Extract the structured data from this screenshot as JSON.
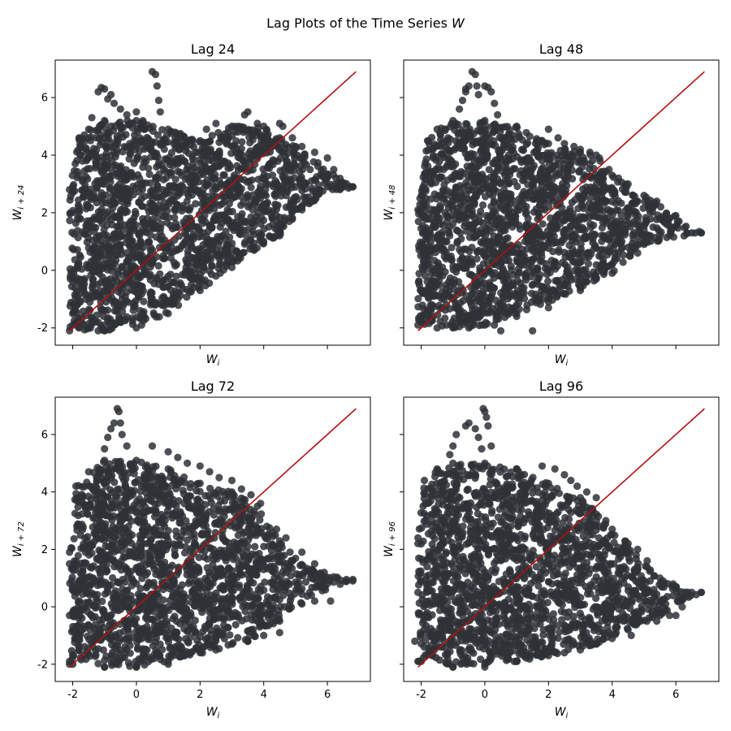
{
  "figure": {
    "title_prefix": "Lag Plots of the Time Series ",
    "title_var": "W"
  },
  "chart_data": [
    {
      "type": "scatter",
      "title": "Lag 24",
      "xlabel_var": "W",
      "xlabel_sub": "i",
      "ylabel_var": "W",
      "ylabel_sub": "i + 24",
      "lag": 24,
      "xlim": [
        -2.55,
        7.35
      ],
      "ylim": [
        -2.6,
        7.3
      ],
      "xticks": [
        -2,
        0,
        2,
        4,
        6
      ],
      "yticks": [
        -2,
        0,
        2,
        4,
        6
      ],
      "show_xticklabels": false,
      "show_yticklabels": true,
      "show_xlabel": true,
      "show_ylabel": true,
      "point_color": "#2e3136",
      "point_alpha": 0.85,
      "line_color": "#b30f0f",
      "reference_line": {
        "x": [
          -2.1,
          6.9
        ],
        "y": [
          -2.1,
          6.9
        ]
      },
      "envelope": [
        [
          -2.1,
          -2.1
        ],
        [
          -2.1,
          2.8
        ],
        [
          -1.8,
          4.6
        ],
        [
          -1.5,
          4.9
        ],
        [
          -1.0,
          5.2
        ],
        [
          0.0,
          5.2
        ],
        [
          1.0,
          4.9
        ],
        [
          2.0,
          4.5
        ],
        [
          3.0,
          5.0
        ],
        [
          4.0,
          5.0
        ],
        [
          4.5,
          4.6
        ],
        [
          5.0,
          4.3
        ],
        [
          6.8,
          2.9
        ],
        [
          5.2,
          2.2
        ],
        [
          4.5,
          1.2
        ],
        [
          3.0,
          0.1
        ],
        [
          2.0,
          -0.7
        ],
        [
          1.0,
          -1.5
        ],
        [
          0.0,
          -2.0
        ],
        [
          -1.0,
          -2.1
        ]
      ],
      "outliers": [
        [
          -1.2,
          6.2
        ],
        [
          -1.1,
          6.35
        ],
        [
          -1.0,
          6.3
        ],
        [
          -0.8,
          6.1
        ],
        [
          -0.7,
          5.8
        ],
        [
          -0.5,
          5.6
        ],
        [
          -0.3,
          5.4
        ],
        [
          0.0,
          5.5
        ],
        [
          0.2,
          5.2
        ],
        [
          0.5,
          6.9
        ],
        [
          0.6,
          6.8
        ],
        [
          0.65,
          6.4
        ],
        [
          0.7,
          5.9
        ],
        [
          0.75,
          5.5
        ],
        [
          -0.9,
          5.95
        ],
        [
          -1.4,
          5.3
        ],
        [
          3.5,
          5.5
        ],
        [
          3.4,
          5.4
        ],
        [
          3.2,
          5.0
        ],
        [
          2.2,
          4.9
        ],
        [
          2.5,
          5.1
        ],
        [
          3.8,
          5.1
        ],
        [
          4.5,
          5.1
        ],
        [
          4.6,
          5.0
        ],
        [
          4.9,
          4.6
        ],
        [
          5.2,
          4.3
        ],
        [
          5.6,
          4.1
        ],
        [
          6.0,
          3.9
        ],
        [
          6.2,
          3.5
        ],
        [
          6.0,
          3.3
        ],
        [
          5.5,
          3.1
        ],
        [
          5.3,
          3.0
        ],
        [
          6.1,
          2.9
        ],
        [
          6.5,
          2.9
        ],
        [
          6.8,
          2.9
        ],
        [
          5.5,
          2.4
        ],
        [
          5.2,
          2.1
        ],
        [
          4.4,
          1.9
        ],
        [
          4.8,
          1.7
        ],
        [
          4.6,
          1.6
        ],
        [
          4.0,
          2.3
        ],
        [
          4.7,
          2.6
        ],
        [
          4.0,
          1.0
        ],
        [
          3.7,
          0.7
        ],
        [
          3.0,
          0.3
        ],
        [
          2.5,
          -0.2
        ],
        [
          1.8,
          -0.6
        ],
        [
          1.0,
          -1.1
        ],
        [
          0.2,
          -1.5
        ],
        [
          -0.5,
          -1.8
        ],
        [
          -1.5,
          -2.0
        ],
        [
          -2.0,
          -1.9
        ],
        [
          -1.8,
          -2.0
        ],
        [
          -1.2,
          -2.1
        ]
      ]
    },
    {
      "type": "scatter",
      "title": "Lag 48",
      "xlabel_var": "W",
      "xlabel_sub": "i",
      "ylabel_var": "W",
      "ylabel_sub": "i + 48",
      "lag": 48,
      "xlim": [
        -2.55,
        7.35
      ],
      "ylim": [
        -2.6,
        7.3
      ],
      "xticks": [
        -2,
        0,
        2,
        4,
        6
      ],
      "yticks": [
        -2,
        0,
        2,
        4,
        6
      ],
      "show_xticklabels": false,
      "show_yticklabels": false,
      "show_xlabel": true,
      "show_ylabel": true,
      "point_color": "#2e3136",
      "point_alpha": 0.85,
      "line_color": "#b30f0f",
      "reference_line": {
        "x": [
          -2.1,
          6.9
        ],
        "y": [
          -2.1,
          6.9
        ]
      },
      "envelope": [
        [
          -2.1,
          -1.9
        ],
        [
          -2.1,
          2.1
        ],
        [
          -1.8,
          4.5
        ],
        [
          -1.5,
          4.9
        ],
        [
          -1.0,
          5.2
        ],
        [
          0.0,
          5.2
        ],
        [
          1.0,
          5.0
        ],
        [
          2.0,
          4.4
        ],
        [
          3.0,
          4.1
        ],
        [
          3.5,
          4.0
        ],
        [
          4.0,
          3.3
        ],
        [
          5.0,
          2.6
        ],
        [
          6.8,
          1.3
        ],
        [
          5.0,
          0.9
        ],
        [
          4.0,
          -0.1
        ],
        [
          3.0,
          -0.6
        ],
        [
          2.0,
          -1.1
        ],
        [
          1.0,
          -1.5
        ],
        [
          0.0,
          -1.9
        ],
        [
          -1.0,
          -2.0
        ]
      ],
      "outliers": [
        [
          -0.8,
          5.6
        ],
        [
          -0.7,
          5.9
        ],
        [
          -0.6,
          6.2
        ],
        [
          -0.5,
          6.4
        ],
        [
          -0.4,
          6.9
        ],
        [
          -0.3,
          6.8
        ],
        [
          -0.25,
          6.4
        ],
        [
          -0.2,
          6.1
        ],
        [
          -0.6,
          6.3
        ],
        [
          0.0,
          6.4
        ],
        [
          0.1,
          6.35
        ],
        [
          0.2,
          6.2
        ],
        [
          0.3,
          5.8
        ],
        [
          0.4,
          5.4
        ],
        [
          2.0,
          4.9
        ],
        [
          2.3,
          4.6
        ],
        [
          2.5,
          4.4
        ],
        [
          2.8,
          4.3
        ],
        [
          3.0,
          4.2
        ],
        [
          3.3,
          4.1
        ],
        [
          3.6,
          3.9
        ],
        [
          3.9,
          3.5
        ],
        [
          4.2,
          3.2
        ],
        [
          4.5,
          3.0
        ],
        [
          4.8,
          2.4
        ],
        [
          5.4,
          2.4
        ],
        [
          5.8,
          1.8
        ],
        [
          6.1,
          1.7
        ],
        [
          6.5,
          1.3
        ],
        [
          6.8,
          1.3
        ],
        [
          6.0,
          1.9
        ],
        [
          5.5,
          1.8
        ],
        [
          5.2,
          1.2
        ],
        [
          5.0,
          1.0
        ],
        [
          4.5,
          0.8
        ],
        [
          4.8,
          0.6
        ],
        [
          4.0,
          0.2
        ],
        [
          3.5,
          -0.3
        ],
        [
          3.0,
          -0.7
        ],
        [
          2.0,
          -1.3
        ],
        [
          1.0,
          -1.6
        ],
        [
          0.3,
          -1.9
        ],
        [
          -0.5,
          -2.0
        ],
        [
          -1.5,
          -2.0
        ],
        [
          -2.0,
          -1.8
        ],
        [
          1.5,
          -2.1
        ],
        [
          0.5,
          -2.1
        ]
      ]
    },
    {
      "type": "scatter",
      "title": "Lag 72",
      "xlabel_var": "W",
      "xlabel_sub": "i",
      "ylabel_var": "W",
      "ylabel_sub": "i + 72",
      "lag": 72,
      "xlim": [
        -2.55,
        7.35
      ],
      "ylim": [
        -2.6,
        7.3
      ],
      "xticks": [
        -2,
        0,
        2,
        4,
        6
      ],
      "yticks": [
        -2,
        0,
        2,
        4,
        6
      ],
      "show_xticklabels": true,
      "show_yticklabels": true,
      "show_xlabel": true,
      "show_ylabel": true,
      "point_color": "#2e3136",
      "point_alpha": 0.85,
      "line_color": "#b30f0f",
      "reference_line": {
        "x": [
          -2.1,
          6.9
        ],
        "y": [
          -2.1,
          6.9
        ]
      },
      "envelope": [
        [
          -2.1,
          -2.0
        ],
        [
          -2.1,
          1.5
        ],
        [
          -1.9,
          4.2
        ],
        [
          -1.5,
          4.7
        ],
        [
          -1.0,
          5.1
        ],
        [
          0.0,
          5.1
        ],
        [
          1.0,
          4.8
        ],
        [
          2.0,
          4.3
        ],
        [
          3.0,
          4.0
        ],
        [
          3.8,
          3.5
        ],
        [
          4.5,
          2.3
        ],
        [
          5.5,
          1.3
        ],
        [
          6.8,
          0.9
        ],
        [
          5.5,
          0.4
        ],
        [
          4.5,
          -0.5
        ],
        [
          3.5,
          -1.2
        ],
        [
          2.5,
          -1.5
        ],
        [
          1.0,
          -1.9
        ],
        [
          0.0,
          -2.1
        ],
        [
          -1.0,
          -2.1
        ]
      ],
      "outliers": [
        [
          -1.0,
          5.5
        ],
        [
          -0.9,
          5.9
        ],
        [
          -0.8,
          6.2
        ],
        [
          -0.7,
          6.4
        ],
        [
          -0.6,
          6.9
        ],
        [
          -0.55,
          6.8
        ],
        [
          -0.5,
          6.4
        ],
        [
          -0.45,
          6.0
        ],
        [
          -0.3,
          5.6
        ],
        [
          0.5,
          5.6
        ],
        [
          1.0,
          5.4
        ],
        [
          1.3,
          5.2
        ],
        [
          1.6,
          5.0
        ],
        [
          2.0,
          4.9
        ],
        [
          2.3,
          4.7
        ],
        [
          2.6,
          4.5
        ],
        [
          3.0,
          4.4
        ],
        [
          3.3,
          4.1
        ],
        [
          3.6,
          3.9
        ],
        [
          3.9,
          3.6
        ],
        [
          4.1,
          2.8
        ],
        [
          4.4,
          2.7
        ],
        [
          4.7,
          2.4
        ],
        [
          5.2,
          1.9
        ],
        [
          5.6,
          1.5
        ],
        [
          5.9,
          1.2
        ],
        [
          6.3,
          1.0
        ],
        [
          6.6,
          0.95
        ],
        [
          6.8,
          0.95
        ],
        [
          6.0,
          0.8
        ],
        [
          5.6,
          0.2
        ],
        [
          6.1,
          0.2
        ],
        [
          5.2,
          0.1
        ],
        [
          4.5,
          -0.9
        ],
        [
          4.0,
          -1.0
        ],
        [
          3.5,
          -1.2
        ],
        [
          3.0,
          -1.3
        ],
        [
          2.0,
          -1.6
        ],
        [
          1.0,
          -2.0
        ],
        [
          0.0,
          -2.1
        ],
        [
          -1.0,
          -2.1
        ],
        [
          -2.0,
          -2.0
        ],
        [
          -2.1,
          -1.9
        ],
        [
          -2.1,
          -0.3
        ],
        [
          -2.1,
          1.9
        ]
      ]
    },
    {
      "type": "scatter",
      "title": "Lag 96",
      "xlabel_var": "W",
      "xlabel_sub": "i",
      "ylabel_var": "W",
      "ylabel_sub": "i + 96",
      "lag": 96,
      "xlim": [
        -2.55,
        7.35
      ],
      "ylim": [
        -2.6,
        7.3
      ],
      "xticks": [
        -2,
        0,
        2,
        4,
        6
      ],
      "yticks": [
        -2,
        0,
        2,
        4,
        6
      ],
      "show_xticklabels": true,
      "show_yticklabels": false,
      "show_xlabel": true,
      "show_ylabel": true,
      "point_color": "#2e3136",
      "point_alpha": 0.85,
      "line_color": "#b30f0f",
      "reference_line": {
        "x": [
          -2.1,
          6.9
        ],
        "y": [
          -2.1,
          6.9
        ]
      },
      "envelope": [
        [
          -2.1,
          -1.9
        ],
        [
          -2.1,
          2.4
        ],
        [
          -1.9,
          4.4
        ],
        [
          -1.5,
          4.8
        ],
        [
          -1.0,
          5.0
        ],
        [
          0.0,
          5.0
        ],
        [
          1.0,
          4.8
        ],
        [
          2.0,
          4.3
        ],
        [
          3.0,
          3.8
        ],
        [
          3.8,
          3.0
        ],
        [
          4.5,
          2.2
        ],
        [
          5.5,
          1.0
        ],
        [
          6.8,
          0.5
        ],
        [
          5.5,
          -0.3
        ],
        [
          4.5,
          -0.8
        ],
        [
          3.5,
          -1.3
        ],
        [
          2.5,
          -1.6
        ],
        [
          1.0,
          -1.9
        ],
        [
          0.0,
          -2.0
        ],
        [
          -1.0,
          -2.1
        ]
      ],
      "outliers": [
        [
          -1.1,
          5.3
        ],
        [
          -1.0,
          5.6
        ],
        [
          -0.9,
          6.0
        ],
        [
          -0.6,
          6.3
        ],
        [
          -0.5,
          6.4
        ],
        [
          -0.3,
          6.2
        ],
        [
          -0.2,
          5.9
        ],
        [
          -0.1,
          5.5
        ],
        [
          -0.05,
          6.9
        ],
        [
          0.0,
          6.8
        ],
        [
          0.05,
          6.6
        ],
        [
          0.1,
          6.3
        ],
        [
          0.2,
          5.6
        ],
        [
          1.0,
          4.8
        ],
        [
          1.8,
          4.9
        ],
        [
          2.2,
          4.8
        ],
        [
          2.5,
          4.6
        ],
        [
          2.7,
          4.4
        ],
        [
          2.9,
          4.2
        ],
        [
          3.2,
          4.0
        ],
        [
          3.5,
          3.8
        ],
        [
          3.3,
          3.0
        ],
        [
          3.6,
          2.8
        ],
        [
          4.0,
          2.7
        ],
        [
          4.4,
          2.0
        ],
        [
          4.8,
          2.0
        ],
        [
          5.1,
          1.6
        ],
        [
          5.6,
          0.9
        ],
        [
          6.0,
          0.7
        ],
        [
          6.5,
          0.5
        ],
        [
          6.8,
          0.5
        ],
        [
          6.2,
          0.0
        ],
        [
          5.8,
          -0.3
        ],
        [
          6.0,
          -0.3
        ],
        [
          5.4,
          -0.5
        ],
        [
          4.6,
          -1.0
        ],
        [
          4.0,
          -1.1
        ],
        [
          3.0,
          -1.5
        ],
        [
          2.0,
          -1.7
        ],
        [
          1.0,
          -1.9
        ],
        [
          0.0,
          -2.1
        ],
        [
          -1.0,
          -2.1
        ],
        [
          -2.0,
          -1.9
        ],
        [
          -2.2,
          -1.2
        ],
        [
          -2.1,
          0.5
        ],
        [
          -2.1,
          2.2
        ]
      ]
    }
  ]
}
